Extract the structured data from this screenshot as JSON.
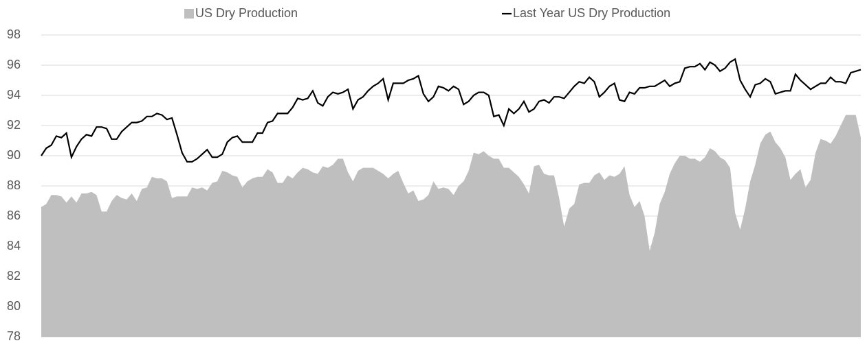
{
  "chart_data": {
    "type": "line-area",
    "ylim": [
      78,
      98
    ],
    "yticks": [
      78,
      80,
      82,
      84,
      86,
      88,
      90,
      92,
      94,
      96,
      98
    ],
    "grid": true,
    "legend": "top",
    "series": [
      {
        "name": "US Dry Production",
        "kind": "area",
        "color": "#bfbfbf",
        "values": [
          86.6,
          86.8,
          87.4,
          87.4,
          87.3,
          86.9,
          87.3,
          86.9,
          87.5,
          87.5,
          87.6,
          87.4,
          86.3,
          86.3,
          87.0,
          87.4,
          87.2,
          87.1,
          87.5,
          87.0,
          87.8,
          87.9,
          88.6,
          88.5,
          88.5,
          88.3,
          87.2,
          87.3,
          87.3,
          87.3,
          87.9,
          87.8,
          87.9,
          87.7,
          88.2,
          88.3,
          89.0,
          88.9,
          88.7,
          88.6,
          87.9,
          88.3,
          88.5,
          88.6,
          88.6,
          89.1,
          88.9,
          88.2,
          88.2,
          88.7,
          88.5,
          88.9,
          89.2,
          89.1,
          88.9,
          88.8,
          89.3,
          89.2,
          89.4,
          89.8,
          89.8,
          88.9,
          88.3,
          89.0,
          89.2,
          89.2,
          89.2,
          89.0,
          88.8,
          88.5,
          88.8,
          89.0,
          88.2,
          87.5,
          87.7,
          87.0,
          87.1,
          87.4,
          88.3,
          87.8,
          87.9,
          87.8,
          87.4,
          88.0,
          88.3,
          89.0,
          90.2,
          90.1,
          90.3,
          90.0,
          89.8,
          89.8,
          89.2,
          89.2,
          88.9,
          88.6,
          88.1,
          87.5,
          89.3,
          89.4,
          88.8,
          88.7,
          88.7,
          87.2,
          85.3,
          86.5,
          86.8,
          88.1,
          88.2,
          88.2,
          88.7,
          88.9,
          88.4,
          88.7,
          88.6,
          88.8,
          89.3,
          87.4,
          86.6,
          87.0,
          86.0,
          83.7,
          84.9,
          86.8,
          87.6,
          88.8,
          89.5,
          90.0,
          90.0,
          89.8,
          89.8,
          89.6,
          89.9,
          90.5,
          90.3,
          89.9,
          89.7,
          89.2,
          86.2,
          85.1,
          86.5,
          88.3,
          89.4,
          90.8,
          91.4,
          91.6,
          90.9,
          90.5,
          89.9,
          88.4,
          88.8,
          89.1,
          87.9,
          88.4,
          90.2,
          91.1,
          91.0,
          90.8,
          91.3,
          92.0,
          92.7,
          92.7,
          92.7,
          91.2
        ]
      },
      {
        "name": "Last Year US Dry Production",
        "kind": "line",
        "color": "#000000",
        "values": [
          90.0,
          90.5,
          90.7,
          91.3,
          91.2,
          91.5,
          89.9,
          90.6,
          91.1,
          91.4,
          91.3,
          91.9,
          91.9,
          91.8,
          91.1,
          91.1,
          91.6,
          91.9,
          92.2,
          92.2,
          92.3,
          92.6,
          92.6,
          92.8,
          92.7,
          92.4,
          92.5,
          91.4,
          90.2,
          89.6,
          89.6,
          89.8,
          90.1,
          90.4,
          89.9,
          89.9,
          90.1,
          90.9,
          91.2,
          91.3,
          90.9,
          90.9,
          90.9,
          91.5,
          91.5,
          92.2,
          92.3,
          92.8,
          92.8,
          92.8,
          93.2,
          93.8,
          93.7,
          93.8,
          94.3,
          93.5,
          93.3,
          93.9,
          94.2,
          94.1,
          94.2,
          94.4,
          93.1,
          93.7,
          93.9,
          94.3,
          94.6,
          94.8,
          95.1,
          93.7,
          94.8,
          94.8,
          94.8,
          95.0,
          95.1,
          95.3,
          94.1,
          93.6,
          93.9,
          94.6,
          94.5,
          94.3,
          94.6,
          94.4,
          93.4,
          93.6,
          94.0,
          94.2,
          94.2,
          94.0,
          92.6,
          92.7,
          92.0,
          93.1,
          92.8,
          93.1,
          93.6,
          92.9,
          93.1,
          93.6,
          93.7,
          93.5,
          93.9,
          93.9,
          93.8,
          94.2,
          94.6,
          94.9,
          94.8,
          95.2,
          94.9,
          93.9,
          94.2,
          94.6,
          94.8,
          93.7,
          93.6,
          94.2,
          94.1,
          94.5,
          94.5,
          94.6,
          94.6,
          94.8,
          95.0,
          94.6,
          94.8,
          94.9,
          95.8,
          95.9,
          95.9,
          96.1,
          95.7,
          96.2,
          96.0,
          95.6,
          95.8,
          96.2,
          96.4,
          95.0,
          94.4,
          93.9,
          94.7,
          94.8,
          95.1,
          94.9,
          94.1,
          94.2,
          94.3,
          94.3,
          95.4,
          95.0,
          94.7,
          94.4,
          94.6,
          94.8,
          94.8,
          95.2,
          94.9,
          94.9,
          94.8,
          95.5,
          95.6,
          95.7
        ]
      }
    ]
  }
}
